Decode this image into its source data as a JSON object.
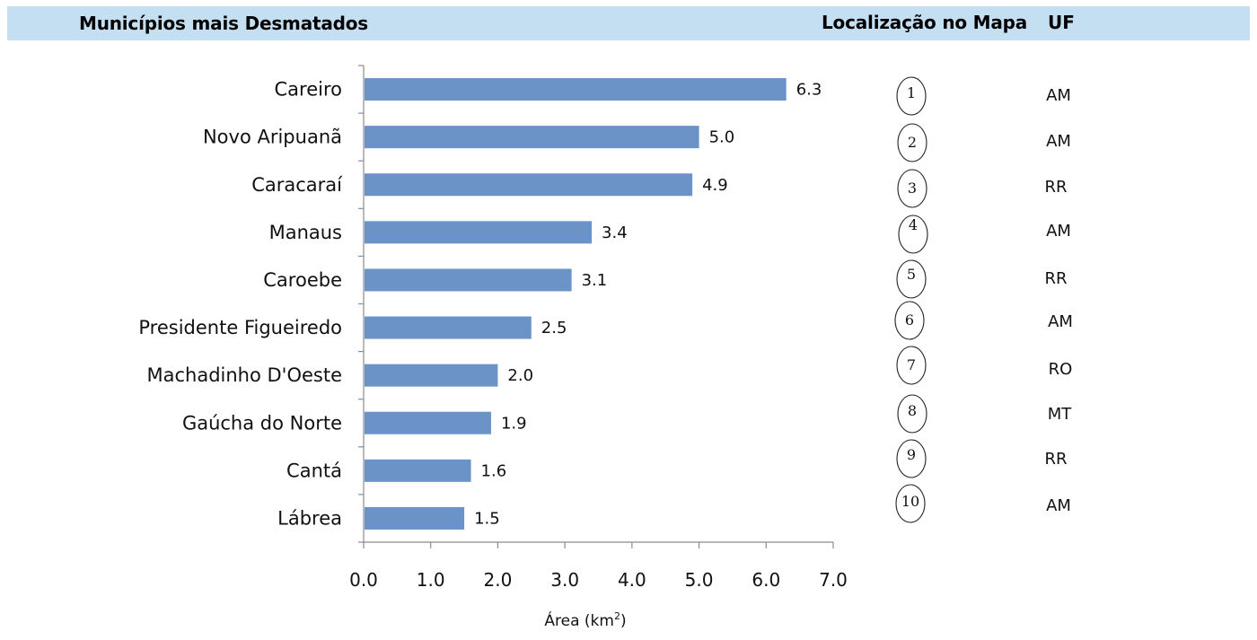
{
  "header": {
    "title": "Municípios mais Desmatados",
    "map_location": "Localização no Mapa",
    "uf": "UF"
  },
  "colors": {
    "bar": "#6b93c8",
    "header_bg": "#c5dff2",
    "axis": "#8c8c8c"
  },
  "chart_data": {
    "type": "bar",
    "orientation": "horizontal",
    "categories": [
      "Careiro",
      "Novo Aripuanã",
      "Caracaraí",
      "Manaus",
      "Caroebe",
      "Presidente Figueiredo",
      "Machadinho D'Oeste",
      "Gaúcha do Norte",
      "Cantá",
      "Lábrea"
    ],
    "values": [
      6.3,
      5.0,
      4.9,
      3.4,
      3.1,
      2.5,
      2.0,
      1.9,
      1.6,
      1.5
    ],
    "value_labels": [
      "6.3",
      "5.0",
      "4.9",
      "3.4",
      "3.1",
      "2.5",
      "2.0",
      "1.9",
      "1.6",
      "1.5"
    ],
    "xlabel": "Área (km",
    "xlabel_sup": "2",
    "xlabel_end": ")",
    "xlim": [
      0,
      7
    ],
    "xticks": [
      "0.0",
      "1.0",
      "2.0",
      "3.0",
      "4.0",
      "5.0",
      "6.0",
      "7.0"
    ],
    "grid": false
  },
  "map_locations": [
    {
      "number": "1",
      "uf": "AM"
    },
    {
      "number": "2",
      "uf": "AM"
    },
    {
      "number": "3",
      "uf": "RR"
    },
    {
      "number": "4",
      "uf": "AM"
    },
    {
      "number": "5",
      "uf": "RR"
    },
    {
      "number": "6",
      "uf": "AM"
    },
    {
      "number": "7",
      "uf": "RO"
    },
    {
      "number": "8",
      "uf": "MT"
    },
    {
      "number": "9",
      "uf": "RR"
    },
    {
      "number": "10",
      "uf": "AM"
    }
  ]
}
